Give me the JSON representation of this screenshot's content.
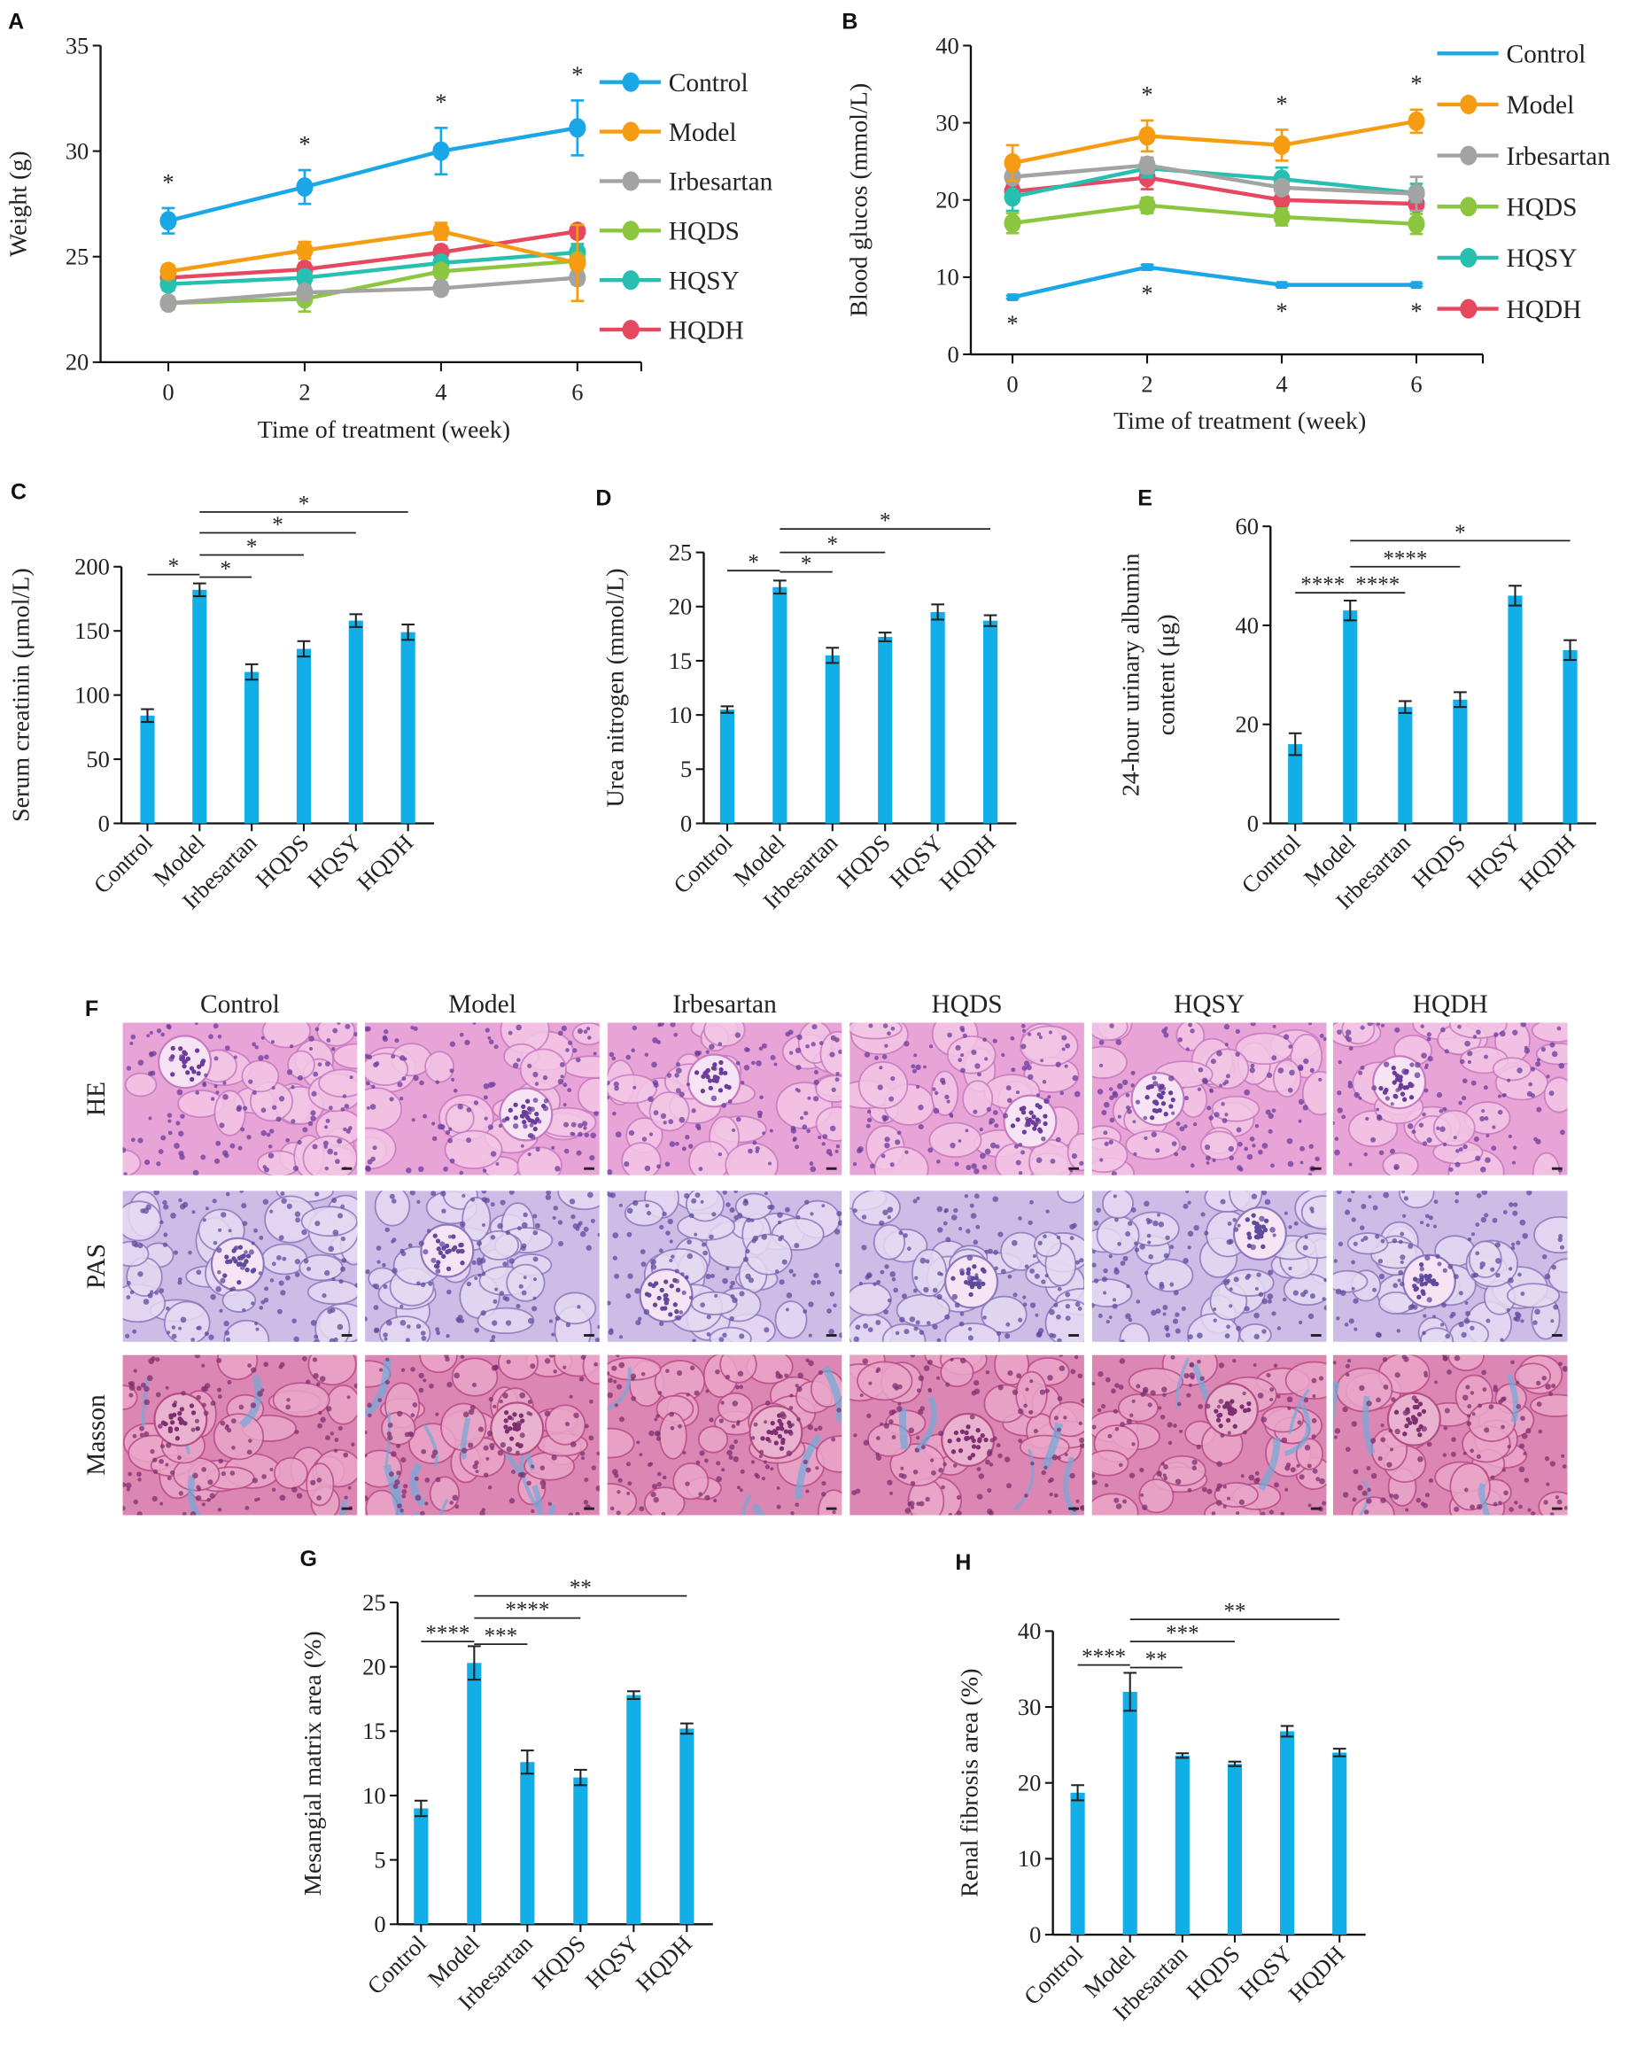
{
  "histology": {
    "label": "F",
    "columns": [
      "Control",
      "Model",
      "Irbesartan",
      "HQDS",
      "HQSY",
      "HQDH"
    ],
    "rows": [
      "HE",
      "PAS",
      "Masson"
    ],
    "stain_colors": {
      "HE": "#e8a4d6",
      "PAS": "#cdbde6",
      "Masson": "#dc86b4",
      "collagen": "#6fa9d8"
    }
  },
  "chart_data": [
    {
      "panel": "A",
      "type": "line",
      "xlabel": "Time of treatment (week)",
      "ylabel": "Weight (g)",
      "x": [
        0,
        2,
        4,
        6
      ],
      "xticks": [
        "0",
        "2",
        "4",
        "6"
      ],
      "ylim": [
        20,
        35
      ],
      "yticks": [
        20,
        25,
        30,
        35
      ],
      "legend": "right",
      "series": [
        {
          "name": "Control",
          "color": "#1aa7e8",
          "values": [
            26.7,
            28.3,
            30.0,
            31.1
          ],
          "errors": [
            0.6,
            0.8,
            1.1,
            1.3
          ]
        },
        {
          "name": "Model",
          "color": "#f59c12",
          "values": [
            24.3,
            25.3,
            26.2,
            24.7
          ],
          "errors": [
            0.3,
            0.4,
            0.4,
            1.8
          ]
        },
        {
          "name": "Irbesartan",
          "color": "#a3a3a3",
          "values": [
            22.8,
            23.3,
            23.5,
            24.0
          ],
          "errors": [
            0.2,
            0.3,
            0.3,
            0.3
          ]
        },
        {
          "name": "HQDS",
          "color": "#8cc63f",
          "values": [
            22.8,
            23.0,
            24.3,
            24.8
          ],
          "errors": [
            0.3,
            0.6,
            0.3,
            0.3
          ]
        },
        {
          "name": "HQSY",
          "color": "#26bfb0",
          "values": [
            23.7,
            24.0,
            24.7,
            25.2
          ],
          "errors": [
            0.3,
            0.3,
            0.3,
            0.4
          ]
        },
        {
          "name": "HQDH",
          "color": "#e5485f",
          "values": [
            24.0,
            24.4,
            25.2,
            26.2
          ],
          "errors": [
            0.3,
            0.3,
            0.3,
            0.3
          ]
        }
      ],
      "marks": [
        {
          "series": "Control",
          "x": 0,
          "label": "*",
          "position": "above"
        },
        {
          "series": "Control",
          "x": 2,
          "label": "*",
          "position": "above"
        },
        {
          "series": "Control",
          "x": 4,
          "label": "*",
          "position": "above"
        },
        {
          "series": "Control",
          "x": 6,
          "label": "*",
          "position": "above"
        }
      ]
    },
    {
      "panel": "B",
      "type": "line",
      "xlabel": "Time of treatment (week)",
      "ylabel": "Blood glucos (mmol/L)",
      "x": [
        0,
        2,
        4,
        6
      ],
      "xticks": [
        "0",
        "2",
        "4",
        "6"
      ],
      "ylim": [
        0,
        40
      ],
      "yticks": [
        0,
        10,
        20,
        30,
        40
      ],
      "legend": "right",
      "series": [
        {
          "name": "Control",
          "color": "#1aa7e8",
          "values": [
            7.4,
            11.3,
            9.0,
            9.0
          ],
          "errors": [
            0.2,
            0.3,
            0.2,
            0.2
          ],
          "marker": "none"
        },
        {
          "name": "Model",
          "color": "#f59c12",
          "values": [
            24.8,
            28.3,
            27.1,
            30.2
          ],
          "errors": [
            2.3,
            2.0,
            2.0,
            1.5
          ]
        },
        {
          "name": "Irbesartan",
          "color": "#a3a3a3",
          "values": [
            23.0,
            24.5,
            21.6,
            20.8
          ],
          "errors": [
            0.5,
            1.0,
            0.8,
            2.2
          ]
        },
        {
          "name": "HQDS",
          "color": "#8cc63f",
          "values": [
            17.0,
            19.3,
            17.8,
            16.9
          ],
          "errors": [
            1.3,
            1.0,
            1.1,
            1.3
          ]
        },
        {
          "name": "HQSY",
          "color": "#26bfb0",
          "values": [
            20.4,
            24.1,
            22.7,
            20.9
          ],
          "errors": [
            1.8,
            1.2,
            1.5,
            1.2
          ]
        },
        {
          "name": "HQDH",
          "color": "#e5485f",
          "values": [
            21.1,
            22.9,
            20.0,
            19.5
          ],
          "errors": [
            0.8,
            1.5,
            0.6,
            0.8
          ]
        }
      ],
      "marks": [
        {
          "series": "Model",
          "x": 2,
          "label": "*",
          "position": "above"
        },
        {
          "series": "Model",
          "x": 4,
          "label": "*",
          "position": "above"
        },
        {
          "series": "Model",
          "x": 6,
          "label": "*",
          "position": "above"
        },
        {
          "series": "Control",
          "x": 0,
          "label": "*",
          "position": "below"
        },
        {
          "series": "Control",
          "x": 2,
          "label": "*",
          "position": "below"
        },
        {
          "series": "Control",
          "x": 4,
          "label": "*",
          "position": "below"
        },
        {
          "series": "Control",
          "x": 6,
          "label": "*",
          "position": "below"
        }
      ]
    },
    {
      "panel": "C",
      "type": "bar",
      "color": "#12aee8",
      "ylabel": "Serum creatinin (μmol/L)",
      "categories": [
        "Control",
        "Model",
        "Irbesartan",
        "HQDS",
        "HQSY",
        "HQDH"
      ],
      "values": [
        84,
        182,
        118,
        136,
        158,
        149
      ],
      "errors": [
        5,
        5,
        6,
        6,
        5,
        6
      ],
      "ylim": [
        0,
        200
      ],
      "yticks": [
        0,
        50,
        100,
        150,
        200
      ],
      "significance": [
        {
          "from": "Control",
          "to": "Model",
          "label": "*"
        },
        {
          "from": "Model",
          "to": "Irbesartan",
          "label": "*"
        },
        {
          "from": "Model",
          "to": "HQDS",
          "label": "*"
        },
        {
          "from": "Model",
          "to": "HQSY",
          "label": "*"
        },
        {
          "from": "Model",
          "to": "HQDH",
          "label": "*"
        }
      ]
    },
    {
      "panel": "D",
      "type": "bar",
      "color": "#12aee8",
      "ylabel": "Urea nitrogen (mmol/L)",
      "categories": [
        "Control",
        "Model",
        "Irbesartan",
        "HQDS",
        "HQSY",
        "HQDH"
      ],
      "values": [
        10.5,
        21.8,
        15.5,
        17.2,
        19.5,
        18.7
      ],
      "errors": [
        0.3,
        0.6,
        0.7,
        0.4,
        0.7,
        0.5
      ],
      "ylim": [
        0,
        25
      ],
      "yticks": [
        0,
        5,
        10,
        15,
        20,
        25
      ],
      "significance": [
        {
          "from": "Control",
          "to": "Model",
          "label": "*"
        },
        {
          "from": "Model",
          "to": "Irbesartan",
          "label": "*"
        },
        {
          "from": "Model",
          "to": "HQDS",
          "label": "*"
        },
        {
          "from": "Model",
          "to": "HQDH",
          "label": "*"
        }
      ]
    },
    {
      "panel": "E",
      "type": "bar",
      "color": "#12aee8",
      "ylabel": [
        "24-hour urinary albumin",
        "content (μg)"
      ],
      "categories": [
        "Control",
        "Model",
        "Irbesartan",
        "HQDS",
        "HQSY",
        "HQDH"
      ],
      "values": [
        16,
        43,
        23.5,
        25,
        46,
        35
      ],
      "errors": [
        2.2,
        2,
        1.2,
        1.5,
        2,
        2
      ],
      "ylim": [
        0,
        60
      ],
      "yticks": [
        0,
        20,
        40,
        60
      ],
      "significance": [
        {
          "from": "Control",
          "to": "Model",
          "label": "****"
        },
        {
          "from": "Model",
          "to": "Irbesartan",
          "label": "****"
        },
        {
          "from": "Model",
          "to": "HQDS",
          "label": "****"
        },
        {
          "from": "Model",
          "to": "HQDH",
          "label": "*"
        }
      ]
    },
    {
      "panel": "G",
      "type": "bar",
      "color": "#12aee8",
      "ylabel": "Mesangial matrix area (%)",
      "categories": [
        "Control",
        "Model",
        "Irbesartan",
        "HQDS",
        "HQSY",
        "HQDH"
      ],
      "values": [
        9.0,
        20.3,
        12.6,
        11.4,
        17.8,
        15.2
      ],
      "errors": [
        0.6,
        1.3,
        0.9,
        0.6,
        0.3,
        0.4
      ],
      "ylim": [
        0,
        25
      ],
      "yticks": [
        0,
        5,
        10,
        15,
        20,
        25
      ],
      "significance": [
        {
          "from": "Control",
          "to": "Model",
          "label": "****"
        },
        {
          "from": "Model",
          "to": "Irbesartan",
          "label": "***"
        },
        {
          "from": "Model",
          "to": "HQDS",
          "label": "****"
        },
        {
          "from": "Model",
          "to": "HQDH",
          "label": "**"
        }
      ]
    },
    {
      "panel": "H",
      "type": "bar",
      "color": "#12aee8",
      "ylabel": "Renal fibrosis area (%)",
      "categories": [
        "Control",
        "Model",
        "Irbesartan",
        "HQDS",
        "HQSY",
        "HQDH"
      ],
      "values": [
        18.7,
        32.0,
        23.6,
        22.5,
        26.8,
        24.0
      ],
      "errors": [
        1.0,
        2.5,
        0.3,
        0.3,
        0.7,
        0.5
      ],
      "ylim": [
        0,
        40
      ],
      "yticks": [
        0,
        10,
        20,
        30,
        40
      ],
      "significance": [
        {
          "from": "Control",
          "to": "Model",
          "label": "****"
        },
        {
          "from": "Model",
          "to": "Irbesartan",
          "label": "**"
        },
        {
          "from": "Model",
          "to": "HQDS",
          "label": "***"
        },
        {
          "from": "Model",
          "to": "HQDH",
          "label": "**"
        }
      ]
    }
  ]
}
